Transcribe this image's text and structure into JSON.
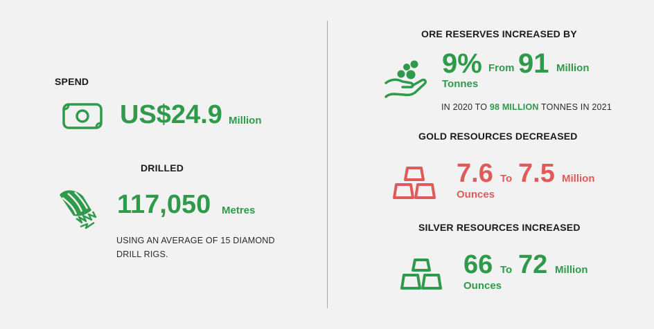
{
  "spend": {
    "label": "SPEND",
    "value": "US$24.9",
    "unit": "Million"
  },
  "drilled": {
    "label": "DRILLED",
    "value": "117,050",
    "unit": "Metres",
    "caption_line1": "USING AN AVERAGE OF 15 DIAMOND",
    "caption_line2": "DRILL RIGS."
  },
  "ore_reserves": {
    "label": "ORE RESERVES INCREASED BY",
    "percent": "9%",
    "from_word": "From",
    "from_value": "91",
    "unit1": "Million",
    "unit2": "Tonnes",
    "caption_prefix": "IN 2020 TO ",
    "caption_highlight": "98 MILLION",
    "caption_suffix": " TONNES IN 2021"
  },
  "gold": {
    "label": "GOLD RESOURCES DECREASED",
    "from_value": "7.6",
    "to_word": "To",
    "to_value": "7.5",
    "unit1": "Million",
    "unit2": "Ounces"
  },
  "silver": {
    "label": "SILVER RESOURCES INCREASED",
    "from_value": "66",
    "to_word": "To",
    "to_value": "72",
    "unit1": "Million",
    "unit2": "Ounces"
  },
  "icons": {
    "spend": "money-bill-icon",
    "drilled": "drill-bit-icon",
    "ore": "hand-with-ore-icon",
    "gold": "gold-bars-icon",
    "silver": "silver-bars-icon"
  },
  "colors": {
    "green": "#2e9a4a",
    "red": "#e05a5a",
    "background": "#f2f2f2"
  }
}
